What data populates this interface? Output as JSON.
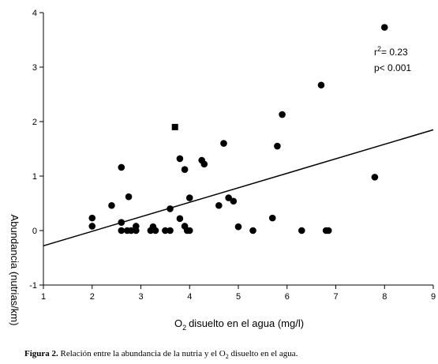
{
  "chart_data": {
    "type": "scatter",
    "title": "",
    "xlabel": "disuelto en el agua (mg/l)",
    "xlabel_prefix": "O",
    "xlabel_sub": "2",
    "ylabel": "Abundancia (nutrias/km)",
    "xlim": [
      1,
      9
    ],
    "ylim": [
      -1,
      4
    ],
    "xticks": [
      1,
      2,
      3,
      4,
      5,
      6,
      7,
      8,
      9
    ],
    "yticks": [
      -1,
      0,
      1,
      2,
      3,
      4
    ],
    "grid": false,
    "legend": "none",
    "annotation": {
      "r_label": "r",
      "r_sup": "2",
      "r_value": "= 0.23",
      "p_text": "p< 0.001"
    },
    "regression_line": {
      "x": [
        1,
        9
      ],
      "y": [
        -0.28,
        1.85
      ]
    },
    "series": [
      {
        "points": [
          {
            "x": 2.0,
            "y": 0.23,
            "marker": "circle"
          },
          {
            "x": 2.0,
            "y": 0.08,
            "marker": "circle"
          },
          {
            "x": 2.4,
            "y": 0.46,
            "marker": "circle"
          },
          {
            "x": 2.6,
            "y": 1.16,
            "marker": "circle"
          },
          {
            "x": 2.6,
            "y": 0.15,
            "marker": "circle"
          },
          {
            "x": 2.6,
            "y": 0.0,
            "marker": "circle"
          },
          {
            "x": 2.72,
            "y": 0.0,
            "marker": "circle"
          },
          {
            "x": 2.75,
            "y": 0.62,
            "marker": "circle"
          },
          {
            "x": 2.8,
            "y": 0.0,
            "marker": "circle"
          },
          {
            "x": 2.9,
            "y": 0.08,
            "marker": "circle"
          },
          {
            "x": 2.9,
            "y": 0.0,
            "marker": "circle"
          },
          {
            "x": 3.2,
            "y": 0.0,
            "marker": "circle"
          },
          {
            "x": 3.25,
            "y": 0.07,
            "marker": "circle"
          },
          {
            "x": 3.3,
            "y": 0.0,
            "marker": "circle"
          },
          {
            "x": 3.5,
            "y": 0.0,
            "marker": "circle"
          },
          {
            "x": 3.6,
            "y": 0.0,
            "marker": "circle"
          },
          {
            "x": 3.6,
            "y": 0.4,
            "marker": "circle"
          },
          {
            "x": 3.7,
            "y": 1.9,
            "marker": "square"
          },
          {
            "x": 3.8,
            "y": 1.32,
            "marker": "circle"
          },
          {
            "x": 3.8,
            "y": 0.22,
            "marker": "circle"
          },
          {
            "x": 3.9,
            "y": 1.12,
            "marker": "circle"
          },
          {
            "x": 3.9,
            "y": 0.08,
            "marker": "circle"
          },
          {
            "x": 3.95,
            "y": 0.0,
            "marker": "circle"
          },
          {
            "x": 4.0,
            "y": 0.0,
            "marker": "circle"
          },
          {
            "x": 4.0,
            "y": 0.6,
            "marker": "circle"
          },
          {
            "x": 4.25,
            "y": 1.29,
            "marker": "circle"
          },
          {
            "x": 4.3,
            "y": 1.22,
            "marker": "circle"
          },
          {
            "x": 4.6,
            "y": 0.46,
            "marker": "circle"
          },
          {
            "x": 4.7,
            "y": 1.6,
            "marker": "circle"
          },
          {
            "x": 4.8,
            "y": 0.6,
            "marker": "circle"
          },
          {
            "x": 4.9,
            "y": 0.54,
            "marker": "circle"
          },
          {
            "x": 5.0,
            "y": 0.07,
            "marker": "circle"
          },
          {
            "x": 5.3,
            "y": 0.0,
            "marker": "circle"
          },
          {
            "x": 5.7,
            "y": 0.23,
            "marker": "circle"
          },
          {
            "x": 5.8,
            "y": 1.55,
            "marker": "circle"
          },
          {
            "x": 5.9,
            "y": 2.13,
            "marker": "circle"
          },
          {
            "x": 6.3,
            "y": 0.0,
            "marker": "circle"
          },
          {
            "x": 6.7,
            "y": 2.67,
            "marker": "circle"
          },
          {
            "x": 6.8,
            "y": 0.0,
            "marker": "circle"
          },
          {
            "x": 6.85,
            "y": 0.0,
            "marker": "circle"
          },
          {
            "x": 7.8,
            "y": 0.98,
            "marker": "circle"
          },
          {
            "x": 8.0,
            "y": 3.73,
            "marker": "circle"
          }
        ]
      }
    ]
  },
  "caption": {
    "label": "Figura 2.",
    "text_before": " Relación entre la abundancia de la nutria y el O",
    "sub": "2",
    "text_after": " disuelto en el agua."
  }
}
